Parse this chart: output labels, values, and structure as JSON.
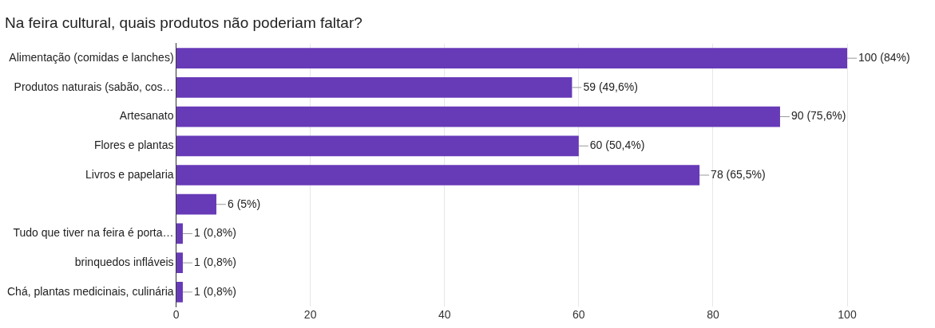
{
  "chart_data": {
    "type": "bar",
    "orientation": "horizontal",
    "title": "Na feira cultural, quais produtos não poderiam faltar?",
    "categories": [
      "Alimentação (comidas e lanches)",
      "Produtos naturais (sabão, cos…",
      "Artesanato",
      "Flores e plantas",
      "Livros e papelaria",
      null,
      "Tudo que tiver na feira é porta…",
      "brinquedos infláveis",
      "Chá, plantas medicinais, culinária"
    ],
    "values": [
      100,
      59,
      90,
      60,
      78,
      6,
      1,
      1,
      1
    ],
    "value_labels": [
      "100 (84%)",
      "59 (49,6%)",
      "90 (75,6%)",
      "60 (50,4%)",
      "78 (65,5%)",
      "6 (5%)",
      "1 (0,8%)",
      "1 (0,8%)",
      "1 (0,8%)"
    ],
    "color": "#673ab7",
    "xlim": [
      0,
      100
    ],
    "xticks": [
      0,
      20,
      40,
      60,
      80,
      100
    ],
    "grid": "x",
    "legend": false
  }
}
